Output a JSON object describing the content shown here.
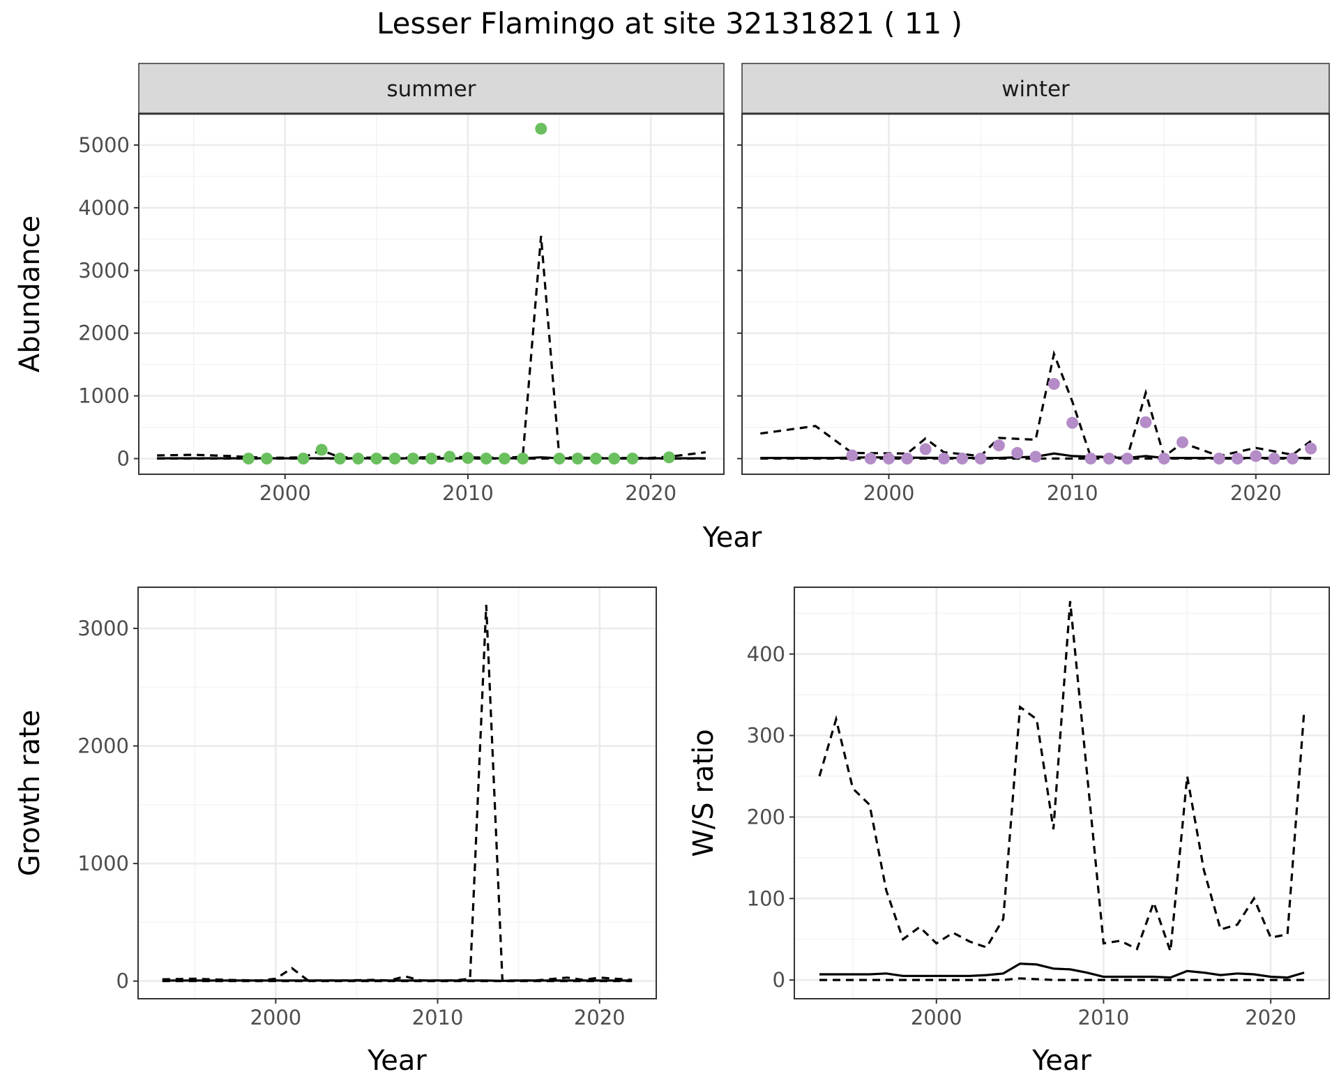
{
  "figure": {
    "title": "Lesser Flamingo at site 32131821 ( 11 )"
  },
  "chart_data": [
    {
      "id": "summer",
      "type": "line",
      "strip_label": "summer",
      "ylabel": "Abundance",
      "xlabel": "Year",
      "xlim": [
        1992,
        2024
      ],
      "ylim": [
        -250,
        5500
      ],
      "x_ticks": [
        2000,
        2010,
        2020
      ],
      "y_ticks": [
        0,
        1000,
        2000,
        3000,
        4000,
        5000
      ],
      "grid": true,
      "point_color": "#6abf5e",
      "points": {
        "x": [
          1998,
          1999,
          2001,
          2002,
          2003,
          2004,
          2005,
          2006,
          2007,
          2008,
          2009,
          2010,
          2011,
          2012,
          2013,
          2014,
          2015,
          2016,
          2017,
          2018,
          2019,
          2021
        ],
        "y": [
          0,
          0,
          0,
          140,
          0,
          0,
          0,
          0,
          0,
          0,
          30,
          10,
          0,
          0,
          0,
          5260,
          0,
          0,
          0,
          0,
          0,
          20
        ]
      },
      "series": [
        {
          "style": "solid",
          "x": [
            1993,
            1996,
            2000,
            2005,
            2010,
            2013,
            2014,
            2015,
            2020,
            2023
          ],
          "y": [
            5,
            5,
            5,
            5,
            5,
            5,
            20,
            5,
            5,
            5
          ]
        },
        {
          "style": "dashed",
          "x": [
            1993,
            1995,
            1997,
            1999,
            2001,
            2002,
            2003,
            2006,
            2009,
            2010,
            2012,
            2013,
            2014,
            2015,
            2017,
            2020,
            2021,
            2023
          ],
          "y": [
            50,
            60,
            40,
            10,
            20,
            130,
            20,
            10,
            30,
            20,
            10,
            30,
            3550,
            20,
            10,
            10,
            30,
            100
          ]
        },
        {
          "style": "dashed",
          "x": [
            1993,
            2023
          ],
          "y": [
            0,
            0
          ]
        }
      ]
    },
    {
      "id": "winter",
      "type": "line",
      "strip_label": "winter",
      "ylabel": "",
      "xlabel": "Year",
      "xlim": [
        1992,
        2024
      ],
      "ylim": [
        -250,
        5500
      ],
      "x_ticks": [
        2000,
        2010,
        2020
      ],
      "y_ticks": [
        0,
        1000,
        2000,
        3000,
        4000,
        5000
      ],
      "grid": true,
      "point_color": "#b48cc8",
      "points": {
        "x": [
          1998,
          1999,
          2000,
          2001,
          2002,
          2003,
          2004,
          2005,
          2006,
          2007,
          2008,
          2009,
          2010,
          2011,
          2012,
          2013,
          2014,
          2015,
          2016,
          2018,
          2019,
          2020,
          2021,
          2022,
          2023
        ],
        "y": [
          50,
          0,
          0,
          0,
          150,
          0,
          0,
          0,
          210,
          90,
          30,
          1190,
          570,
          0,
          0,
          0,
          580,
          0,
          260,
          0,
          0,
          40,
          0,
          0,
          160
        ]
      },
      "series": [
        {
          "style": "solid",
          "x": [
            1993,
            1997,
            1999,
            2003,
            2006,
            2008,
            2009,
            2010,
            2013,
            2014,
            2015,
            2018,
            2023
          ],
          "y": [
            10,
            10,
            20,
            10,
            10,
            30,
            80,
            40,
            10,
            40,
            10,
            10,
            10
          ]
        },
        {
          "style": "dashed",
          "x": [
            1993,
            1996,
            1998,
            2001,
            2002,
            2003,
            2005,
            2006,
            2008,
            2009,
            2010,
            2011,
            2013,
            2014,
            2015,
            2016,
            2018,
            2020,
            2022,
            2023
          ],
          "y": [
            400,
            520,
            90,
            80,
            320,
            100,
            40,
            330,
            300,
            1670,
            910,
            30,
            30,
            1050,
            30,
            250,
            40,
            170,
            60,
            280
          ]
        },
        {
          "style": "dashed",
          "x": [
            1993,
            2023
          ],
          "y": [
            0,
            0
          ]
        }
      ]
    },
    {
      "id": "growth",
      "type": "line",
      "strip_label": "",
      "ylabel": "Growth rate",
      "xlabel": "Year",
      "xlim": [
        1991.5,
        2023.5
      ],
      "ylim": [
        -150,
        3350
      ],
      "x_ticks": [
        2000,
        2010,
        2020
      ],
      "y_ticks": [
        0,
        1000,
        2000,
        3000
      ],
      "grid": true,
      "series": [
        {
          "style": "solid",
          "x": [
            1993,
            2000,
            2005,
            2010,
            2013,
            2014,
            2015,
            2020,
            2022
          ],
          "y": [
            5,
            5,
            5,
            5,
            5,
            2,
            5,
            5,
            5
          ]
        },
        {
          "style": "dashed",
          "x": [
            1993,
            1995,
            1997,
            1999,
            2000,
            2001,
            2002,
            2004,
            2006,
            2007,
            2008,
            2009,
            2011,
            2012,
            2013,
            2014,
            2016,
            2018,
            2019,
            2020,
            2022
          ],
          "y": [
            15,
            20,
            10,
            5,
            20,
            110,
            5,
            5,
            10,
            5,
            40,
            5,
            5,
            20,
            3200,
            5,
            5,
            30,
            10,
            30,
            10
          ]
        },
        {
          "style": "dashed",
          "x": [
            1993,
            2022
          ],
          "y": [
            0,
            0
          ]
        }
      ]
    },
    {
      "id": "ws",
      "type": "line",
      "strip_label": "",
      "ylabel": "W/S ratio",
      "xlabel": "Year",
      "xlim": [
        1991.5,
        2023.5
      ],
      "ylim": [
        -23,
        482
      ],
      "x_ticks": [
        2000,
        2010,
        2020
      ],
      "y_ticks": [
        0,
        100,
        200,
        300,
        400
      ],
      "grid": true,
      "series": [
        {
          "style": "solid",
          "x": [
            1993,
            1995,
            1996,
            1997,
            1998,
            2000,
            2001,
            2002,
            2003,
            2004,
            2005,
            2006,
            2007,
            2008,
            2009,
            2010,
            2011,
            2012,
            2013,
            2014,
            2015,
            2016,
            2017,
            2018,
            2019,
            2020,
            2021,
            2022
          ],
          "y": [
            7,
            7,
            7,
            8,
            5,
            5,
            5,
            5,
            6,
            8,
            20,
            19,
            14,
            13,
            9,
            4,
            4,
            4,
            4,
            3,
            11,
            9,
            6,
            8,
            7,
            4,
            3,
            9
          ]
        },
        {
          "style": "dashed",
          "x": [
            1993,
            1994,
            1995,
            1996,
            1997,
            1998,
            1999,
            2000,
            2001,
            2002,
            2003,
            2004,
            2005,
            2006,
            2007,
            2008,
            2009,
            2010,
            2011,
            2012,
            2013,
            2014,
            2015,
            2016,
            2017,
            2018,
            2019,
            2020,
            2021,
            2022
          ],
          "y": [
            250,
            320,
            235,
            215,
            110,
            50,
            65,
            45,
            58,
            47,
            40,
            75,
            335,
            320,
            185,
            465,
            255,
            45,
            48,
            38,
            95,
            35,
            250,
            135,
            62,
            68,
            100,
            52,
            56,
            330
          ]
        },
        {
          "style": "dashed",
          "x": [
            1993,
            2004,
            2005,
            2006,
            2007,
            2022
          ],
          "y": [
            0,
            0,
            2,
            1,
            0,
            0
          ]
        }
      ]
    }
  ]
}
